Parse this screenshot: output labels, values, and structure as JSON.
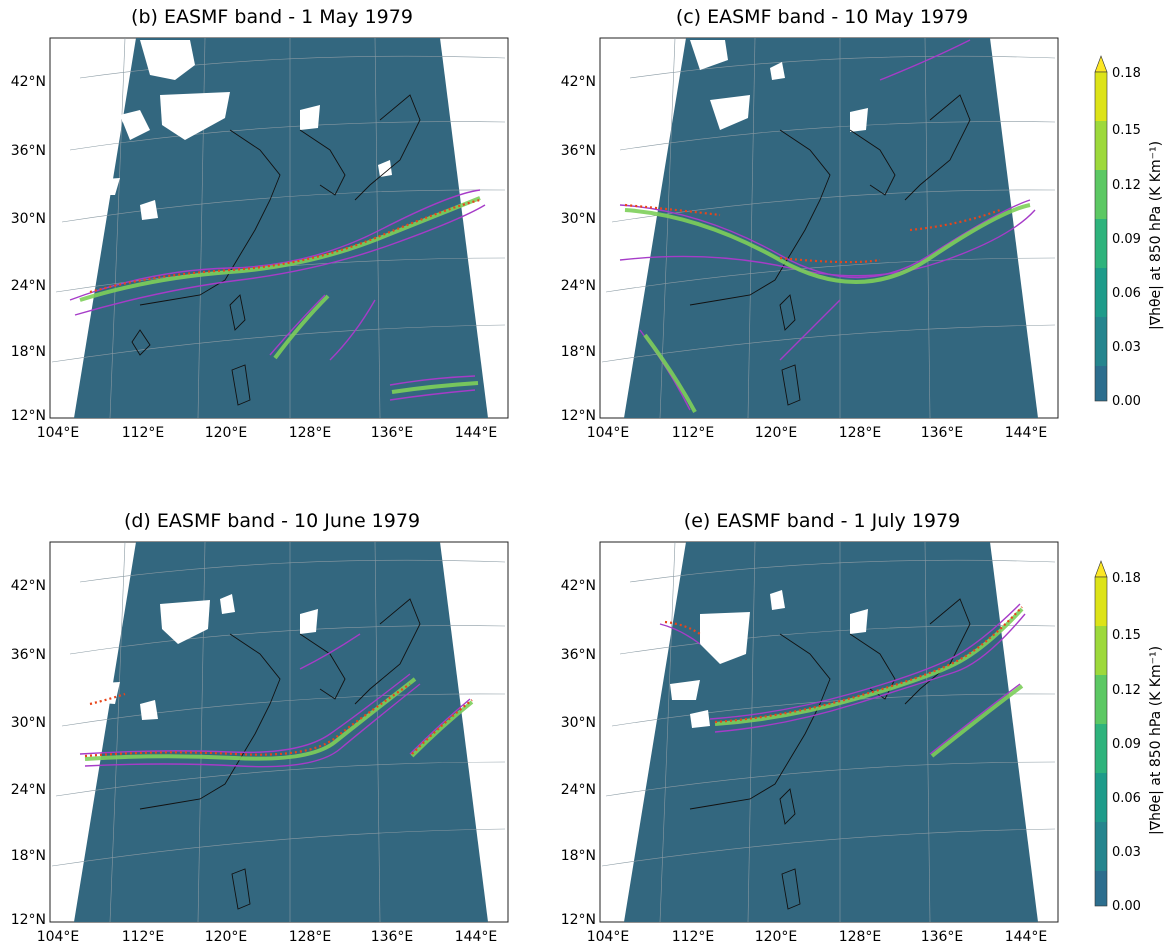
{
  "panels": [
    {
      "title": "(b) EASMF band - 1 May 1979"
    },
    {
      "title": "(c) EASMF band - 10 May 1979"
    },
    {
      "title": "(d) EASMF band - 10 June 1979"
    },
    {
      "title": "(e) EASMF band - 1 July 1979"
    }
  ],
  "axes": {
    "lat_labels": [
      "42°N",
      "36°N",
      "30°N",
      "24°N",
      "18°N",
      "12°N"
    ],
    "lon_labels": [
      "104°E",
      "112°E",
      "120°E",
      "128°E",
      "136°E",
      "144°E"
    ]
  },
  "colorbar": {
    "label": "|∇hθe| at 850 hPa (K Km⁻¹)",
    "ticks": [
      "0.18",
      "0.15",
      "0.12",
      "0.09",
      "0.06",
      "0.03",
      "0.00"
    ],
    "colors": [
      "#2c6e8e",
      "#25858e",
      "#1e9b8a",
      "#2eb37c",
      "#5cc863",
      "#9dd93b",
      "#dde318"
    ],
    "extend_color": "#fde725"
  },
  "colors": {
    "field": "#33677f",
    "front": "#7dcf5a",
    "contour": "#a63cc8",
    "marker": "#e8451a"
  }
}
